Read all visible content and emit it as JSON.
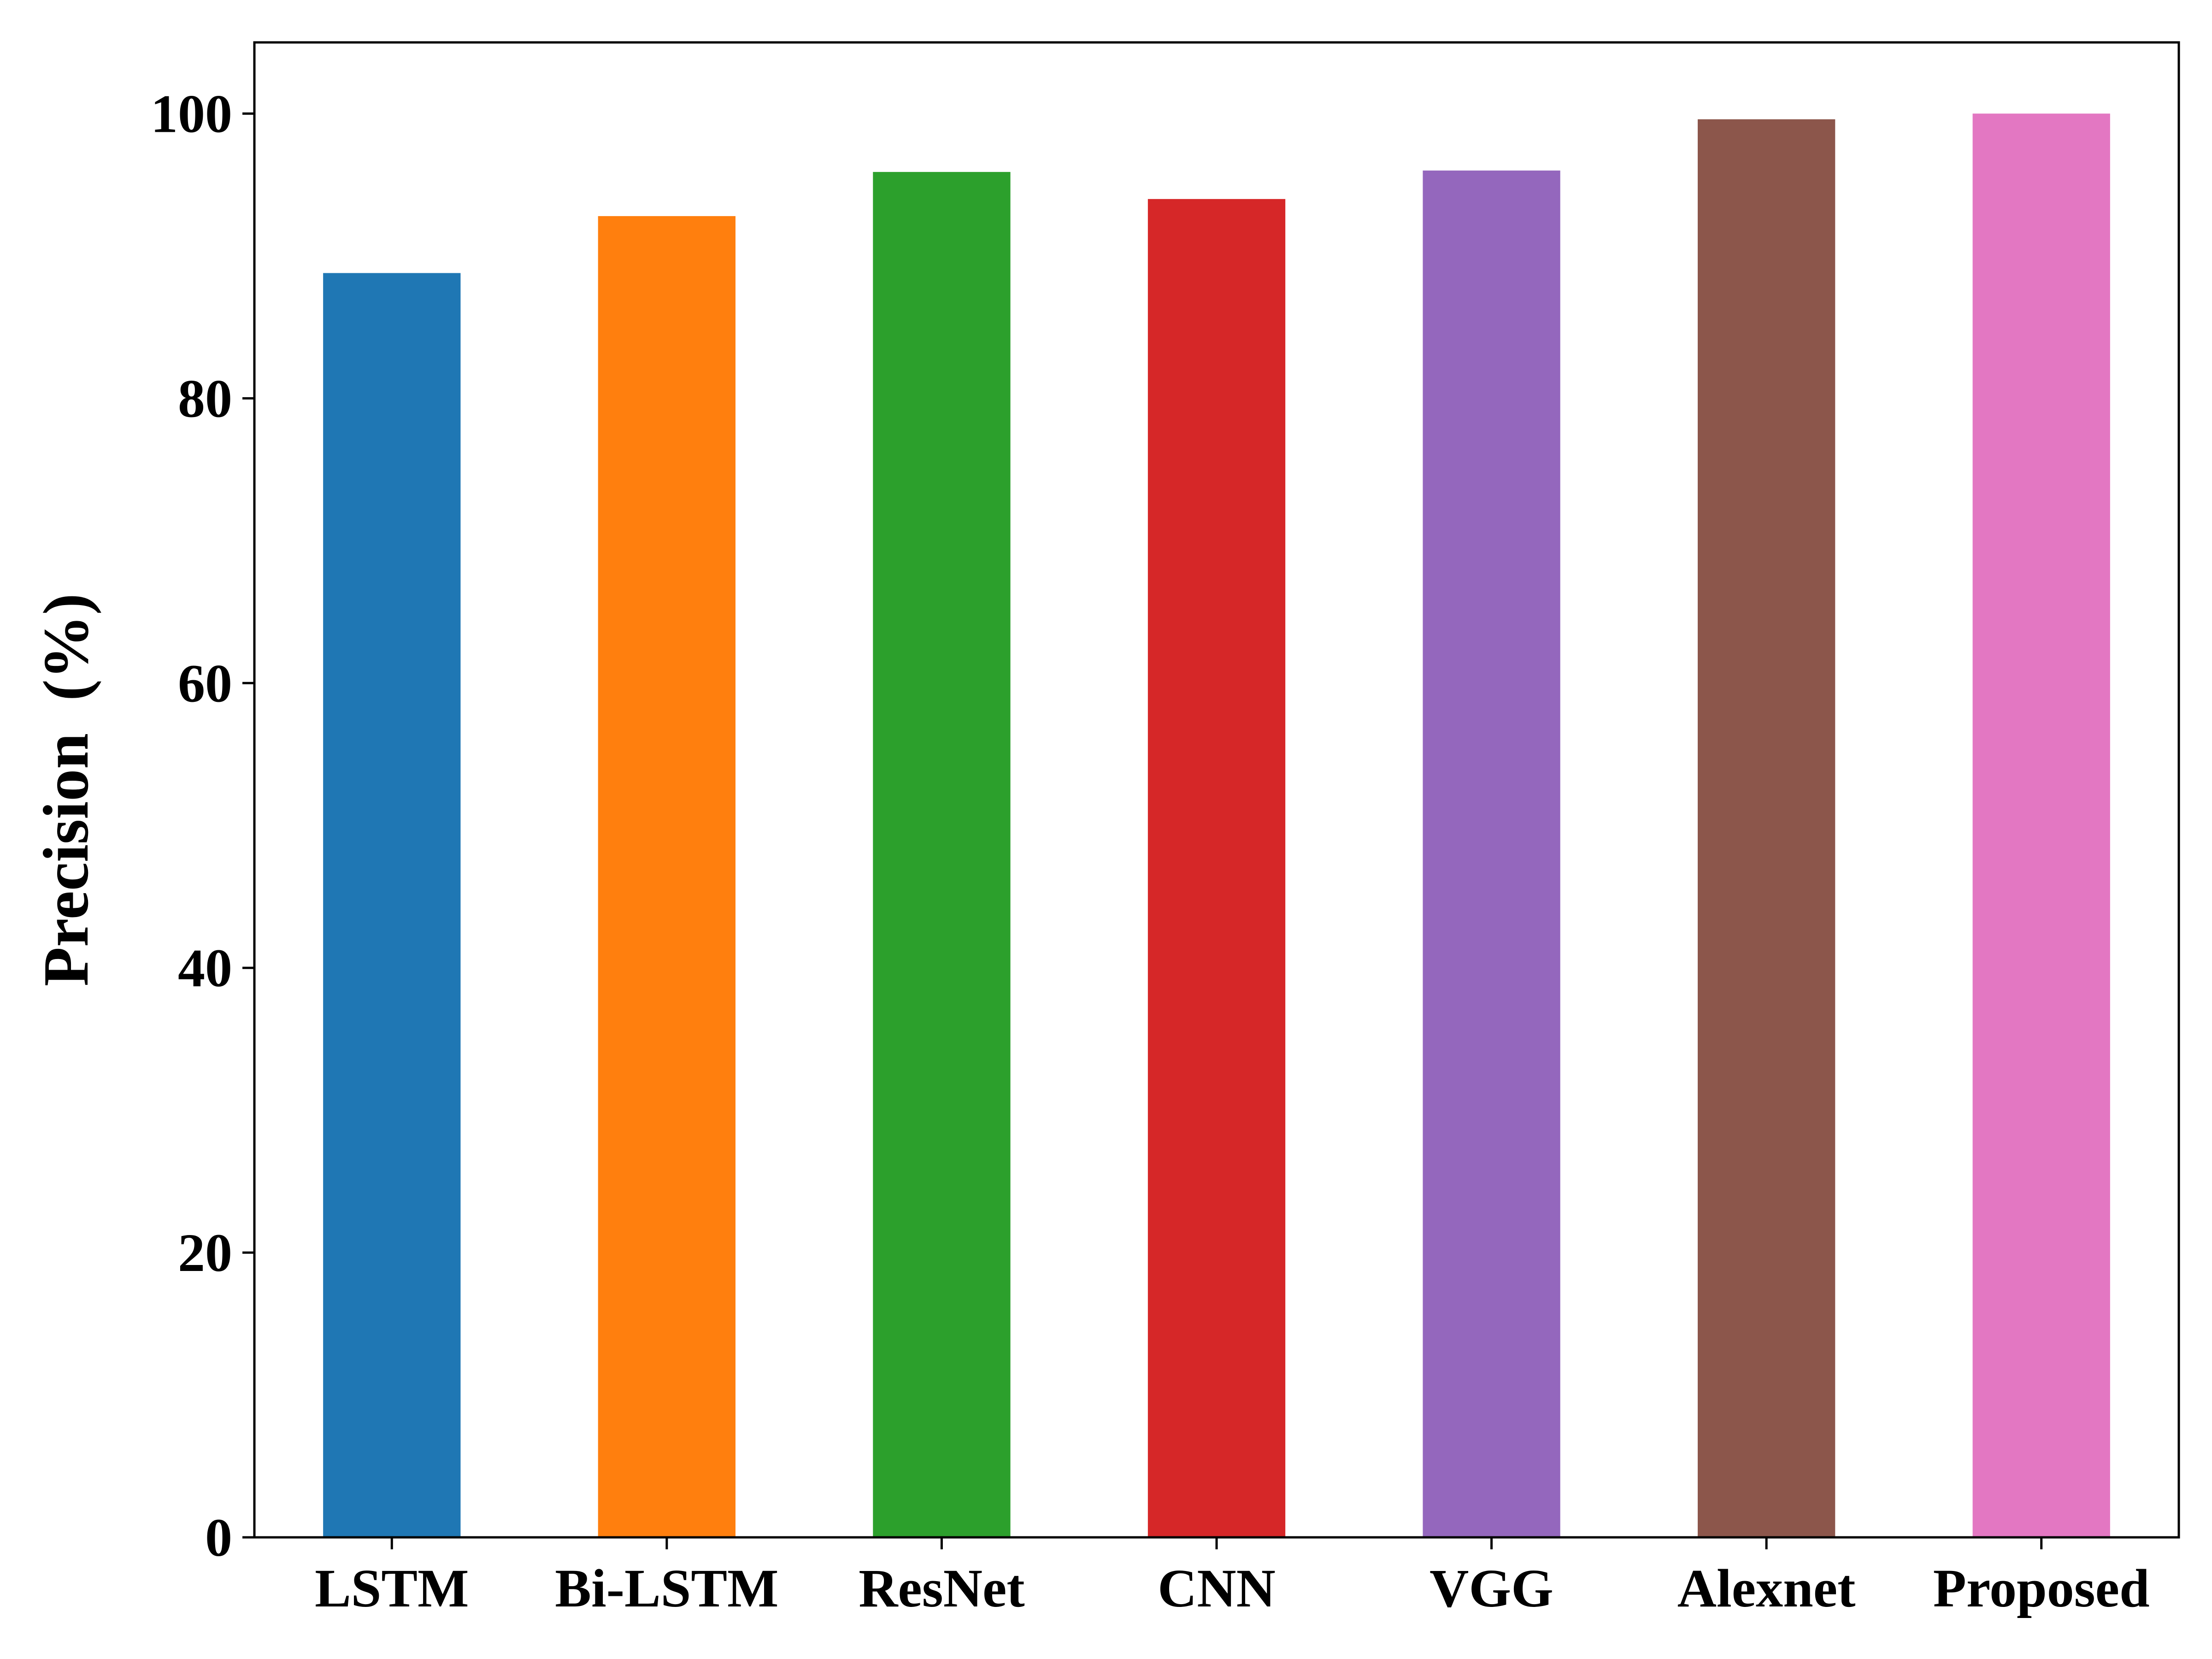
{
  "chart_data": {
    "type": "bar",
    "title": "",
    "xlabel": "",
    "ylabel": "Precision  (%)",
    "categories": [
      "LSTM",
      "Bi-LSTM",
      "ResNet",
      "CNN",
      "VGG",
      "Alexnet",
      "Proposed"
    ],
    "values": [
      88.8,
      92.8,
      95.9,
      94.0,
      96.0,
      99.6,
      100.0
    ],
    "colors": [
      "#1f77b4",
      "#ff7f0e",
      "#2ca02c",
      "#d62728",
      "#9467bd",
      "#8c564b",
      "#e377c2"
    ],
    "ylim": [
      0,
      105
    ],
    "yticks": [
      0,
      20,
      40,
      60,
      80,
      100
    ],
    "ytick_labels": [
      "0",
      "20",
      "40",
      "60",
      "80",
      "100"
    ],
    "grid": false,
    "legend": "none"
  }
}
